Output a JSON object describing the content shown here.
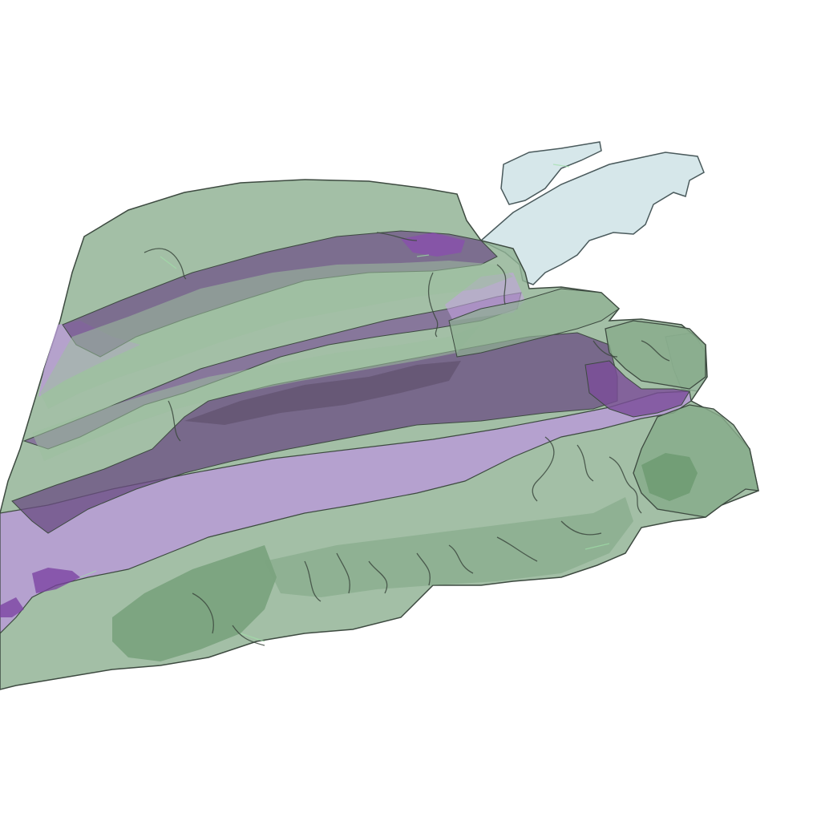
{
  "scene": {
    "background": "#ffffff",
    "layers": [
      {
        "name": "pale-blue-surface",
        "fill": "#cfe3e6",
        "opacity": 0.85
      },
      {
        "name": "green-surface",
        "fill": "#8fb193",
        "opacity": 0.8
      },
      {
        "name": "purple-surface",
        "fill": "#b08fcf",
        "opacity": 0.8
      },
      {
        "name": "dark-purple-bands",
        "fill": "#6e4f86",
        "opacity": 0.75
      },
      {
        "name": "outline",
        "stroke": "#3d4a40"
      }
    ]
  }
}
